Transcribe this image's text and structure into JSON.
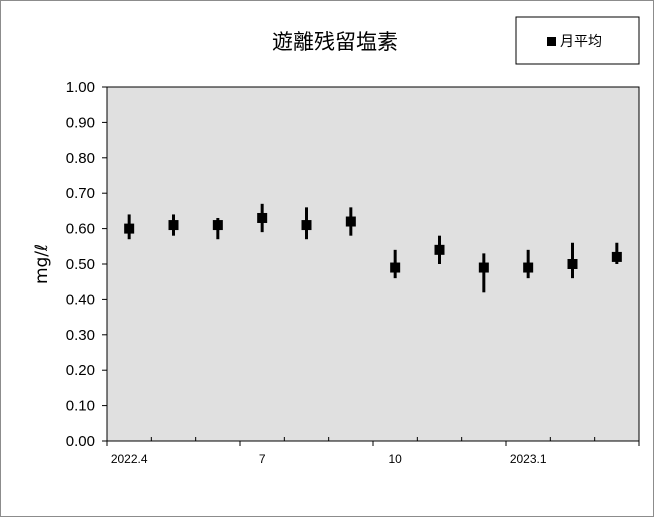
{
  "chart_data": {
    "type": "scatter",
    "title": "遊離残留塩素",
    "ylabel": "mg/ℓ",
    "xlabel": "",
    "ylim": [
      0,
      1.0
    ],
    "y_ticks": [
      "0.00",
      "0.10",
      "0.20",
      "0.30",
      "0.40",
      "0.50",
      "0.60",
      "0.70",
      "0.80",
      "0.90",
      "1.00"
    ],
    "x_tick_labels": [
      {
        "label": "2022.4",
        "index": 0
      },
      {
        "label": "7",
        "index": 3
      },
      {
        "label": "10",
        "index": 6
      },
      {
        "label": "2023.1",
        "index": 9
      }
    ],
    "categories": [
      "2022.4",
      "2022.5",
      "2022.6",
      "2022.7",
      "2022.8",
      "2022.9",
      "2022.10",
      "2022.11",
      "2022.12",
      "2023.1",
      "2023.2",
      "2023.3"
    ],
    "series": [
      {
        "name": "月平均",
        "values": [
          0.6,
          0.61,
          0.61,
          0.63,
          0.61,
          0.62,
          0.49,
          0.54,
          0.49,
          0.49,
          0.5,
          0.52
        ],
        "min": [
          0.57,
          0.58,
          0.57,
          0.59,
          0.57,
          0.58,
          0.46,
          0.5,
          0.42,
          0.46,
          0.46,
          0.5
        ],
        "max": [
          0.64,
          0.64,
          0.63,
          0.67,
          0.66,
          0.66,
          0.54,
          0.58,
          0.53,
          0.54,
          0.56,
          0.56
        ]
      }
    ],
    "legend_position": "top-right",
    "grid": false,
    "plot_background": "#e0e0e0",
    "marker_color": "#000000"
  }
}
